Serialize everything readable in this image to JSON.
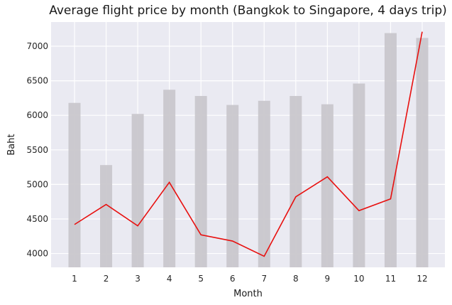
{
  "chart_data": {
    "type": "bar+line",
    "title": "Average flight price by month (Bangkok to Singapore, 4 days trip)",
    "xlabel": "Month",
    "ylabel": "Baht",
    "categories": [
      "1",
      "2",
      "3",
      "4",
      "5",
      "6",
      "7",
      "8",
      "9",
      "10",
      "11",
      "12"
    ],
    "ylim": [
      3800,
      7350
    ],
    "yticks": [
      4000,
      4500,
      5000,
      5500,
      6000,
      6500,
      7000
    ],
    "series": [
      {
        "type": "bar",
        "values": [
          6180,
          5280,
          6020,
          6370,
          6280,
          6150,
          6210,
          6280,
          6160,
          6460,
          7190,
          7120
        ],
        "color": "#c9c7cc"
      },
      {
        "type": "line",
        "values": [
          4420,
          4710,
          4400,
          5030,
          4270,
          4180,
          3960,
          4820,
          5110,
          4620,
          4790,
          7210
        ],
        "color": "#e8100f"
      }
    ],
    "grid": true,
    "background": "#eaeaf2"
  }
}
